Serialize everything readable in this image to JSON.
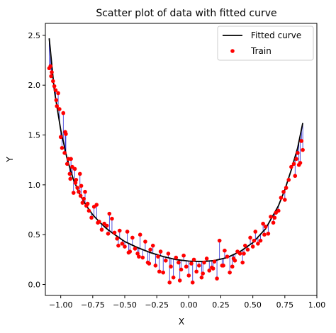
{
  "chart_data": {
    "type": "scatter",
    "title": "Scatter plot of data with fitted curve",
    "xlabel": "X",
    "ylabel": "Y",
    "xlim": [
      -1.12,
      1.0
    ],
    "ylim": [
      -0.11,
      2.62
    ],
    "xticks": [
      -1.0,
      -0.75,
      -0.5,
      -0.25,
      0.0,
      0.25,
      0.5,
      0.75,
      1.0
    ],
    "xtick_labels": [
      "−1.00",
      "−0.75",
      "−0.50",
      "−0.25",
      "0.00",
      "0.25",
      "0.50",
      "0.75",
      "1.00"
    ],
    "yticks": [
      0.0,
      0.5,
      1.0,
      1.5,
      2.0,
      2.5
    ],
    "ytick_labels": [
      "0.0",
      "0.5",
      "1.0",
      "1.5",
      "2.0",
      "2.5"
    ],
    "grid": false,
    "legend_position": "top-right",
    "colors": {
      "curve": "#000000",
      "points": "#ff0000",
      "residuals": "#0000cc"
    },
    "series": [
      {
        "name": "Fitted curve",
        "kind": "line",
        "x": [
          -1.09,
          -1.05,
          -1.0,
          -0.95,
          -0.9,
          -0.85,
          -0.8,
          -0.75,
          -0.7,
          -0.65,
          -0.6,
          -0.5,
          -0.4,
          -0.3,
          -0.2,
          -0.1,
          0.0,
          0.1,
          0.2,
          0.3,
          0.4,
          0.5,
          0.6,
          0.7,
          0.75,
          0.8,
          0.85,
          0.89
        ],
        "y": [
          2.47,
          1.95,
          1.55,
          1.26,
          1.05,
          0.9,
          0.79,
          0.7,
          0.63,
          0.57,
          0.52,
          0.43,
          0.37,
          0.32,
          0.28,
          0.25,
          0.235,
          0.23,
          0.24,
          0.27,
          0.33,
          0.42,
          0.56,
          0.79,
          0.95,
          1.15,
          1.37,
          1.62
        ]
      },
      {
        "name": "Train",
        "kind": "scatter",
        "x": [
          -1.09,
          -1.08,
          -1.07,
          -1.06,
          -1.05,
          -1.04,
          -1.03,
          -1.02,
          -1.01,
          -1.0,
          -0.99,
          -0.98,
          -0.97,
          -0.96,
          -0.95,
          -0.94,
          -0.93,
          -0.92,
          -0.91,
          -0.9,
          -0.89,
          -0.88,
          -0.87,
          -0.86,
          -0.85,
          -0.84,
          -0.83,
          -0.82,
          -0.81,
          -0.8,
          -0.78,
          -0.76,
          -0.74,
          -0.72,
          -0.7,
          -0.68,
          -0.66,
          -0.64,
          -0.62,
          -0.6,
          -0.58,
          -0.56,
          -0.54,
          -0.52,
          -0.5,
          -0.48,
          -0.46,
          -0.44,
          -0.42,
          -0.4,
          -0.38,
          -0.36,
          -0.34,
          -0.32,
          -0.3,
          -0.28,
          -0.26,
          -0.24,
          -0.22,
          -0.2,
          -0.18,
          -0.16,
          -0.14,
          -0.12,
          -0.1,
          -0.08,
          -0.06,
          -0.04,
          -0.02,
          0.0,
          0.02,
          0.04,
          0.06,
          0.08,
          0.1,
          0.12,
          0.14,
          0.16,
          0.18,
          0.2,
          0.22,
          0.24,
          0.26,
          0.28,
          0.3,
          0.32,
          0.34,
          0.36,
          0.38,
          0.4,
          0.42,
          0.44,
          0.46,
          0.48,
          0.5,
          0.52,
          0.54,
          0.56,
          0.58,
          0.6,
          0.62,
          0.64,
          0.66,
          0.68,
          0.7,
          0.72,
          0.74,
          0.76,
          0.78,
          0.8,
          0.82,
          0.84,
          0.85,
          0.86,
          0.87,
          0.88,
          0.89,
          -1.075,
          -1.035,
          -0.965,
          -0.925,
          -0.885,
          -0.845,
          -0.79,
          -0.71,
          -0.63,
          -0.55,
          -0.47,
          -0.39,
          -0.31,
          -0.23,
          -0.15,
          -0.07,
          0.03,
          0.11,
          0.19,
          0.27,
          0.35,
          0.43,
          0.51,
          0.59,
          0.67,
          0.75,
          0.83
        ],
        "y": [
          2.17,
          2.19,
          2.13,
          2.04,
          1.99,
          1.95,
          1.79,
          1.92,
          1.76,
          1.48,
          1.37,
          1.72,
          1.32,
          1.51,
          1.21,
          1.26,
          1.11,
          1.26,
          1.18,
          0.92,
          1.16,
          1.05,
          0.97,
          0.93,
          1.11,
          0.99,
          0.82,
          0.86,
          0.93,
          0.79,
          0.74,
          0.67,
          0.78,
          0.8,
          0.63,
          0.55,
          0.61,
          0.59,
          0.71,
          0.66,
          0.52,
          0.46,
          0.54,
          0.41,
          0.38,
          0.53,
          0.33,
          0.47,
          0.36,
          0.31,
          0.5,
          0.27,
          0.43,
          0.22,
          0.35,
          0.39,
          0.19,
          0.28,
          0.33,
          0.12,
          0.24,
          0.31,
          0.18,
          0.07,
          0.27,
          0.22,
          0.15,
          0.29,
          0.18,
          0.09,
          0.21,
          0.25,
          0.13,
          0.19,
          0.07,
          0.22,
          0.26,
          0.14,
          0.17,
          0.23,
          0.06,
          0.44,
          0.19,
          0.34,
          0.28,
          0.12,
          0.18,
          0.24,
          0.33,
          0.31,
          0.22,
          0.39,
          0.35,
          0.47,
          0.38,
          0.53,
          0.41,
          0.44,
          0.61,
          0.58,
          0.51,
          0.68,
          0.62,
          0.72,
          0.74,
          0.87,
          0.93,
          0.97,
          1.05,
          1.18,
          1.21,
          1.26,
          1.32,
          1.2,
          1.22,
          1.44,
          1.35,
          2.09,
          1.85,
          1.53,
          1.06,
          1.02,
          0.89,
          0.81,
          0.62,
          0.51,
          0.39,
          0.32,
          0.28,
          0.21,
          0.13,
          0.02,
          0.04,
          0.02,
          0.11,
          0.16,
          0.19,
          0.26,
          0.31,
          0.44,
          0.5,
          0.67,
          0.85,
          1.09
        ]
      }
    ]
  }
}
